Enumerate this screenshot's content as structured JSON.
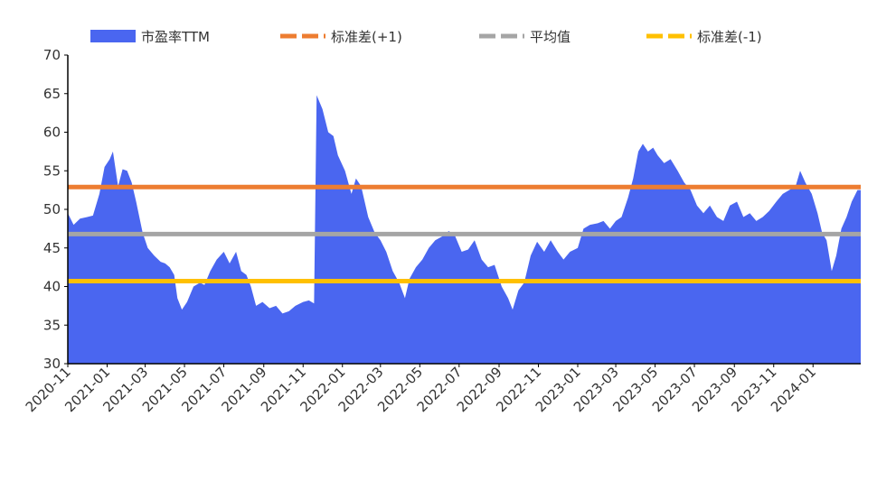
{
  "chart_data": {
    "type": "area",
    "title": "",
    "xlabel": "",
    "ylabel": "",
    "ylim": [
      30,
      70
    ],
    "yticks": [
      30,
      35,
      40,
      45,
      50,
      55,
      60,
      65,
      70
    ],
    "xlim": [
      "2020-11-01",
      "2024-03-15"
    ],
    "xticks": [
      "2020-11",
      "2021-01",
      "2021-03",
      "2021-05",
      "2021-07",
      "2021-09",
      "2021-11",
      "2022-01",
      "2022-03",
      "2022-05",
      "2022-07",
      "2022-09",
      "2022-11",
      "2023-01",
      "2023-03",
      "2023-05",
      "2023-07",
      "2023-09",
      "2023-11",
      "2024-01"
    ],
    "grid": false,
    "legend_position": "top",
    "series": [
      {
        "name": "市盈率TTM",
        "kind": "area",
        "color": "#4a66f0",
        "points": [
          [
            "2020-11-01",
            49.5
          ],
          [
            "2020-11-10",
            48.0
          ],
          [
            "2020-11-20",
            48.8
          ],
          [
            "2020-12-01",
            49.0
          ],
          [
            "2020-12-10",
            49.2
          ],
          [
            "2020-12-20",
            52.0
          ],
          [
            "2020-12-28",
            55.5
          ],
          [
            "2021-01-05",
            56.5
          ],
          [
            "2021-01-10",
            57.5
          ],
          [
            "2021-01-18",
            53.0
          ],
          [
            "2021-01-25",
            55.2
          ],
          [
            "2021-02-01",
            55.0
          ],
          [
            "2021-02-08",
            53.5
          ],
          [
            "2021-02-15",
            51.0
          ],
          [
            "2021-02-25",
            47.0
          ],
          [
            "2021-03-05",
            45.0
          ],
          [
            "2021-03-15",
            44.0
          ],
          [
            "2021-03-25",
            43.2
          ],
          [
            "2021-04-01",
            43.0
          ],
          [
            "2021-04-08",
            42.5
          ],
          [
            "2021-04-15",
            41.5
          ],
          [
            "2021-04-20",
            38.5
          ],
          [
            "2021-04-27",
            37.0
          ],
          [
            "2021-05-05",
            38.0
          ],
          [
            "2021-05-15",
            40.0
          ],
          [
            "2021-05-25",
            40.5
          ],
          [
            "2021-06-01",
            40.2
          ],
          [
            "2021-06-10",
            42.0
          ],
          [
            "2021-06-20",
            43.5
          ],
          [
            "2021-07-01",
            44.5
          ],
          [
            "2021-07-10",
            43.0
          ],
          [
            "2021-07-20",
            44.5
          ],
          [
            "2021-07-28",
            42.0
          ],
          [
            "2021-08-05",
            41.5
          ],
          [
            "2021-08-12",
            40.0
          ],
          [
            "2021-08-20",
            37.5
          ],
          [
            "2021-08-30",
            38.0
          ],
          [
            "2021-09-10",
            37.2
          ],
          [
            "2021-09-20",
            37.5
          ],
          [
            "2021-09-30",
            36.5
          ],
          [
            "2021-10-10",
            36.8
          ],
          [
            "2021-10-20",
            37.5
          ],
          [
            "2021-11-01",
            38.0
          ],
          [
            "2021-11-10",
            38.2
          ],
          [
            "2021-11-18",
            37.8
          ],
          [
            "2021-11-22",
            64.8
          ],
          [
            "2021-12-01",
            63.0
          ],
          [
            "2021-12-10",
            60.0
          ],
          [
            "2021-12-18",
            59.5
          ],
          [
            "2021-12-25",
            57.0
          ],
          [
            "2022-01-05",
            55.0
          ],
          [
            "2022-01-15",
            52.0
          ],
          [
            "2022-01-22",
            54.0
          ],
          [
            "2022-01-30",
            53.0
          ],
          [
            "2022-02-10",
            49.0
          ],
          [
            "2022-02-20",
            47.0
          ],
          [
            "2022-03-01",
            46.0
          ],
          [
            "2022-03-10",
            44.5
          ],
          [
            "2022-03-20",
            42.0
          ],
          [
            "2022-03-30",
            40.5
          ],
          [
            "2022-04-08",
            38.5
          ],
          [
            "2022-04-15",
            41.0
          ],
          [
            "2022-04-25",
            42.5
          ],
          [
            "2022-05-05",
            43.5
          ],
          [
            "2022-05-15",
            45.0
          ],
          [
            "2022-05-25",
            46.0
          ],
          [
            "2022-06-05",
            46.5
          ],
          [
            "2022-06-15",
            47.2
          ],
          [
            "2022-06-25",
            46.5
          ],
          [
            "2022-07-05",
            44.5
          ],
          [
            "2022-07-15",
            44.8
          ],
          [
            "2022-07-25",
            46.0
          ],
          [
            "2022-08-05",
            43.5
          ],
          [
            "2022-08-15",
            42.5
          ],
          [
            "2022-08-25",
            42.8
          ],
          [
            "2022-09-05",
            40.0
          ],
          [
            "2022-09-15",
            38.5
          ],
          [
            "2022-09-22",
            37.0
          ],
          [
            "2022-10-01",
            39.5
          ],
          [
            "2022-10-10",
            40.5
          ],
          [
            "2022-10-20",
            44.0
          ],
          [
            "2022-10-30",
            45.8
          ],
          [
            "2022-11-10",
            44.5
          ],
          [
            "2022-11-20",
            46.0
          ],
          [
            "2022-12-01",
            44.5
          ],
          [
            "2022-12-10",
            43.5
          ],
          [
            "2022-12-20",
            44.5
          ],
          [
            "2023-01-01",
            45.0
          ],
          [
            "2023-01-10",
            47.5
          ],
          [
            "2023-01-20",
            48.0
          ],
          [
            "2023-02-01",
            48.2
          ],
          [
            "2023-02-10",
            48.5
          ],
          [
            "2023-02-20",
            47.5
          ],
          [
            "2023-03-01",
            48.5
          ],
          [
            "2023-03-10",
            49.0
          ],
          [
            "2023-03-20",
            51.5
          ],
          [
            "2023-03-28",
            54.0
          ],
          [
            "2023-04-05",
            57.5
          ],
          [
            "2023-04-12",
            58.5
          ],
          [
            "2023-04-20",
            57.5
          ],
          [
            "2023-04-28",
            58.0
          ],
          [
            "2023-05-05",
            57.0
          ],
          [
            "2023-05-15",
            56.0
          ],
          [
            "2023-05-25",
            56.5
          ],
          [
            "2023-06-05",
            55.0
          ],
          [
            "2023-06-15",
            53.5
          ],
          [
            "2023-06-25",
            52.5
          ],
          [
            "2023-07-05",
            50.5
          ],
          [
            "2023-07-15",
            49.5
          ],
          [
            "2023-07-25",
            50.5
          ],
          [
            "2023-08-05",
            49.0
          ],
          [
            "2023-08-15",
            48.5
          ],
          [
            "2023-08-25",
            50.5
          ],
          [
            "2023-09-05",
            51.0
          ],
          [
            "2023-09-15",
            49.0
          ],
          [
            "2023-09-25",
            49.5
          ],
          [
            "2023-10-05",
            48.5
          ],
          [
            "2023-10-15",
            49.0
          ],
          [
            "2023-10-25",
            49.8
          ],
          [
            "2023-11-05",
            51.0
          ],
          [
            "2023-11-15",
            52.0
          ],
          [
            "2023-11-25",
            52.5
          ],
          [
            "2023-12-05",
            53.0
          ],
          [
            "2023-12-12",
            55.0
          ],
          [
            "2023-12-20",
            53.5
          ],
          [
            "2023-12-30",
            52.0
          ],
          [
            "2024-01-08",
            49.5
          ],
          [
            "2024-01-15",
            47.0
          ],
          [
            "2024-01-22",
            46.0
          ],
          [
            "2024-01-30",
            42.0
          ],
          [
            "2024-02-06",
            44.0
          ],
          [
            "2024-02-14",
            47.5
          ],
          [
            "2024-02-22",
            49.0
          ],
          [
            "2024-03-01",
            51.0
          ],
          [
            "2024-03-10",
            52.5
          ],
          [
            "2024-03-15",
            52.5
          ]
        ]
      },
      {
        "name": "标准差(+1)",
        "kind": "hline",
        "value": 52.9,
        "color": "#ed7d31"
      },
      {
        "name": "平均值",
        "kind": "hline",
        "value": 46.8,
        "color": "#a5a5a5"
      },
      {
        "name": "标准差(-1)",
        "kind": "hline",
        "value": 40.7,
        "color": "#ffc000"
      }
    ]
  }
}
